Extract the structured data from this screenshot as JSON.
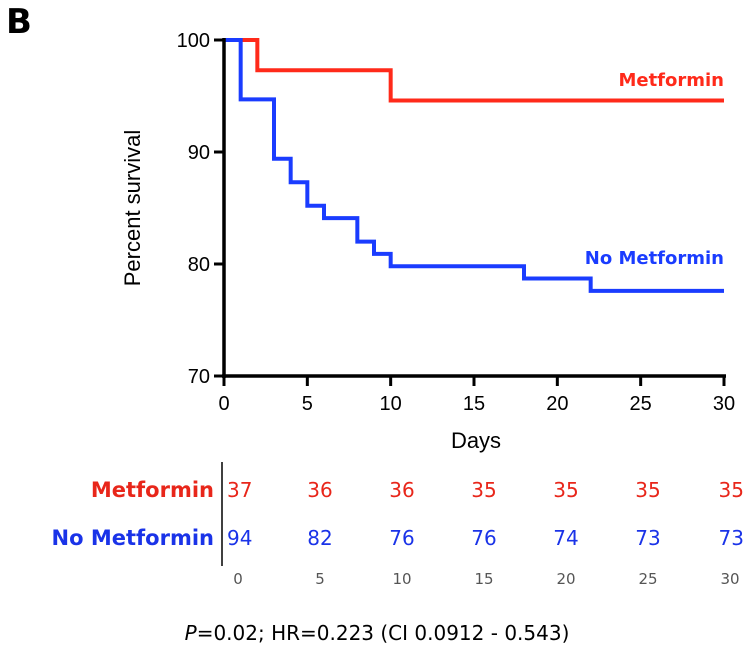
{
  "panel_label": "B",
  "chart_data": {
    "type": "line",
    "title": "",
    "xlabel": "Days",
    "ylabel": "Percent survival",
    "xlim": [
      0,
      30
    ],
    "ylim": [
      70,
      100
    ],
    "x_ticks": [
      0,
      5,
      10,
      15,
      20,
      25,
      30
    ],
    "y_ticks": [
      70,
      80,
      90,
      100
    ],
    "grid": false,
    "step": true,
    "series": [
      {
        "name": "Metformin",
        "color": "#ff2a1a",
        "points": [
          [
            0,
            100
          ],
          [
            2,
            97.3
          ],
          [
            10,
            94.6
          ],
          [
            30,
            94.6
          ]
        ]
      },
      {
        "name": "No Metformin",
        "color": "#1a3cff",
        "points": [
          [
            0,
            100
          ],
          [
            1,
            94.7
          ],
          [
            3,
            89.4
          ],
          [
            4,
            87.3
          ],
          [
            5,
            85.2
          ],
          [
            6,
            84.1
          ],
          [
            8,
            82.0
          ],
          [
            9,
            80.9
          ],
          [
            10,
            79.8
          ],
          [
            18,
            78.7
          ],
          [
            22,
            77.6
          ],
          [
            30,
            77.6
          ]
        ]
      }
    ]
  },
  "risk_table": {
    "times": [
      0,
      5,
      10,
      15,
      20,
      25,
      30
    ],
    "rows": [
      {
        "name": "Metformin",
        "color": "#e8261a",
        "values": [
          37,
          36,
          36,
          35,
          35,
          35,
          35
        ]
      },
      {
        "name": "No Metformin",
        "color": "#1a33e8",
        "values": [
          94,
          82,
          76,
          76,
          74,
          73,
          73
        ]
      }
    ]
  },
  "stats": {
    "p_symbol": "P",
    "text": "=0.02; HR=0.223 (CI 0.0912 - 0.543)"
  }
}
